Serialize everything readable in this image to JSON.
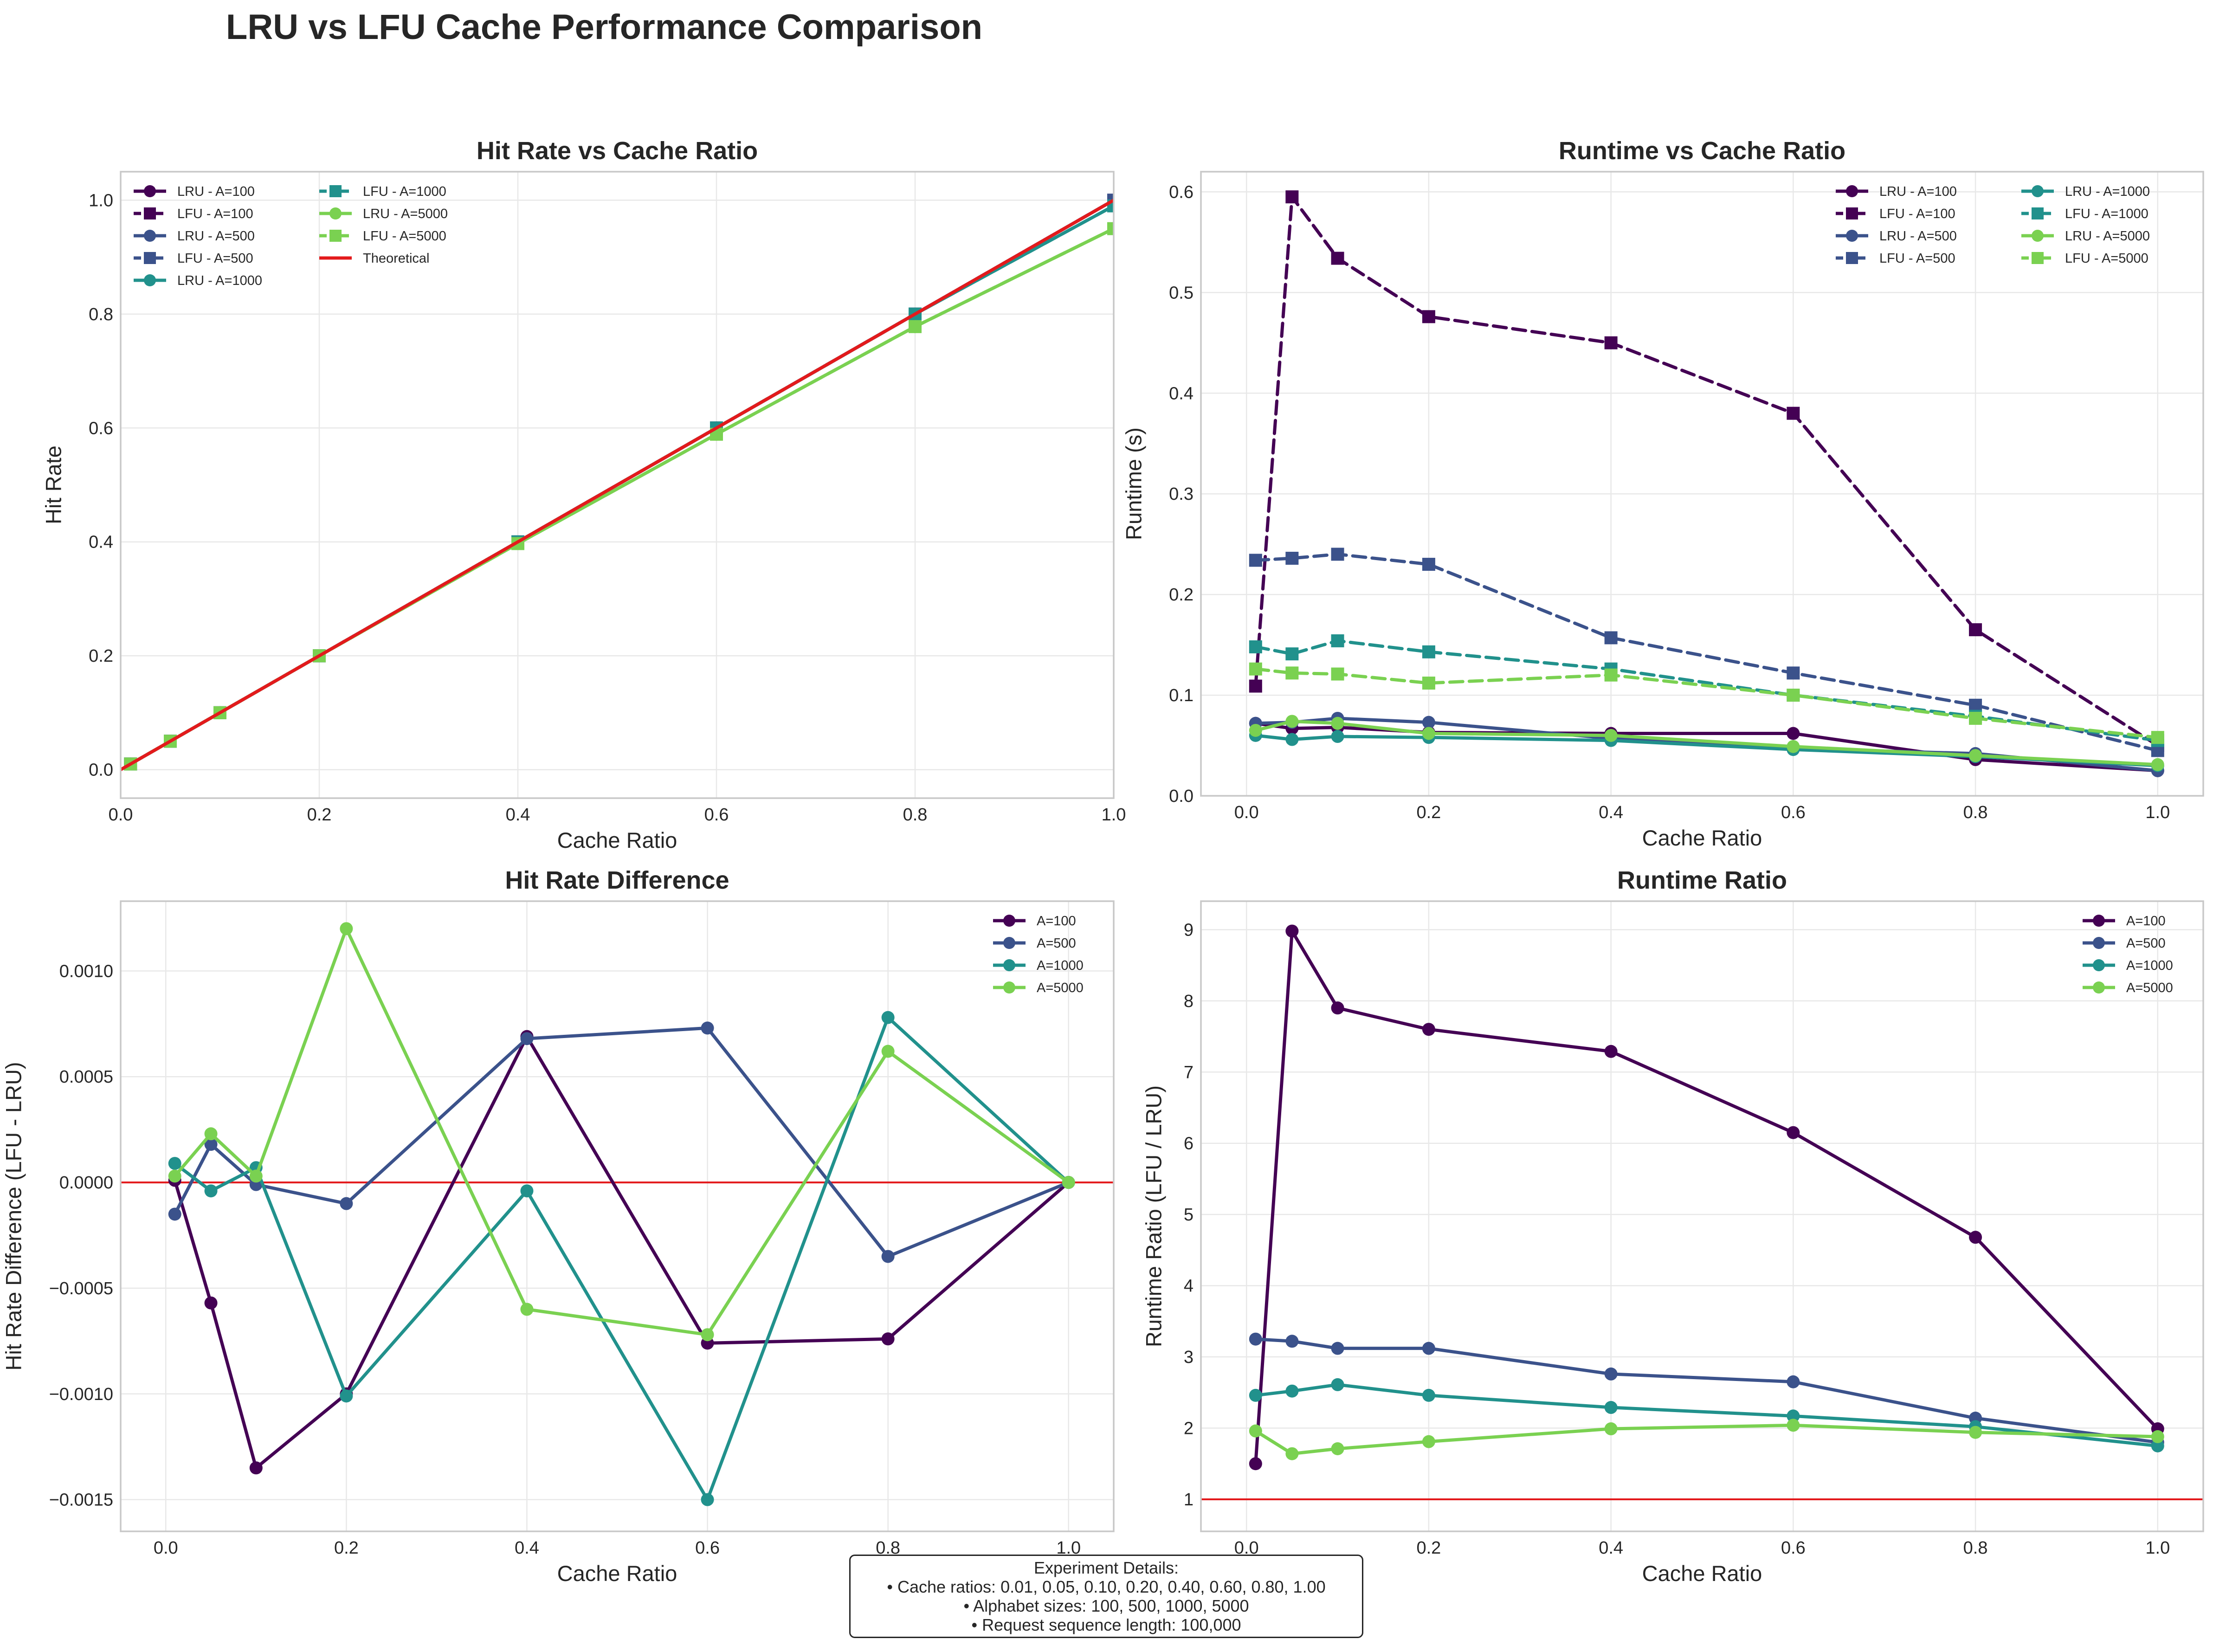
{
  "figure_title": "LRU vs LFU Cache Performance Comparison",
  "colors": {
    "A100": "#440154",
    "A500": "#3b528b",
    "A1000": "#21918c",
    "A5000": "#7ad151",
    "reference": "#e31a1c"
  },
  "chart_data": [
    {
      "id": "hit-rate",
      "type": "line",
      "title": "Hit Rate vs Cache Ratio",
      "xlabel": "Cache Ratio",
      "ylabel": "Hit Rate",
      "xlim": [
        0,
        1
      ],
      "ylim": [
        -0.05,
        1.05
      ],
      "xticks": [
        0,
        0.2,
        0.4,
        0.6,
        0.8,
        1
      ],
      "xtick_labels": [
        "0.0",
        "0.2",
        "0.4",
        "0.6",
        "0.8",
        "1.0"
      ],
      "yticks": [
        0,
        0.2,
        0.4,
        0.6,
        0.8,
        1
      ],
      "ytick_labels": [
        "0.0",
        "0.2",
        "0.4",
        "0.6",
        "0.8",
        "1.0"
      ],
      "grid": true,
      "legend": "top-left",
      "legend_columns": 2,
      "x": [
        0.01,
        0.05,
        0.1,
        0.2,
        0.4,
        0.6,
        0.8,
        1.0
      ],
      "series": [
        {
          "name": "LRU - A=100",
          "color": "#440154",
          "marker": "circle",
          "dash": "solid",
          "values": [
            0.01,
            0.05,
            0.1,
            0.2,
            0.4,
            0.6,
            0.8,
            1.0
          ]
        },
        {
          "name": "LFU - A=100",
          "color": "#440154",
          "marker": "square",
          "dash": "dashed",
          "values": [
            0.01,
            0.05,
            0.1,
            0.2,
            0.4,
            0.6,
            0.8,
            1.0
          ]
        },
        {
          "name": "LRU - A=500",
          "color": "#3b528b",
          "marker": "circle",
          "dash": "solid",
          "values": [
            0.01,
            0.05,
            0.1,
            0.2,
            0.4,
            0.6,
            0.8,
            1.0
          ]
        },
        {
          "name": "LFU - A=500",
          "color": "#3b528b",
          "marker": "square",
          "dash": "dashed",
          "values": [
            0.01,
            0.05,
            0.1,
            0.2,
            0.4,
            0.6,
            0.8,
            1.0
          ]
        },
        {
          "name": "LRU - A=1000",
          "color": "#21918c",
          "marker": "circle",
          "dash": "solid",
          "values": [
            0.01,
            0.05,
            0.1,
            0.2,
            0.4,
            0.6,
            0.8,
            0.99
          ]
        },
        {
          "name": "LFU - A=1000",
          "color": "#21918c",
          "marker": "square",
          "dash": "dashed",
          "values": [
            0.01,
            0.05,
            0.1,
            0.2,
            0.4,
            0.6,
            0.8,
            0.99
          ]
        },
        {
          "name": "LRU - A=5000",
          "color": "#7ad151",
          "marker": "circle",
          "dash": "solid",
          "values": [
            0.01,
            0.05,
            0.1,
            0.2,
            0.397,
            0.589,
            0.778,
            0.95
          ]
        },
        {
          "name": "LFU - A=5000",
          "color": "#7ad151",
          "marker": "square",
          "dash": "dashed",
          "values": [
            0.01,
            0.05,
            0.1,
            0.2,
            0.397,
            0.589,
            0.778,
            0.95
          ]
        },
        {
          "name": "Theoretical",
          "color": "#e31a1c",
          "marker": "none",
          "dash": "solid",
          "width": 7,
          "x": [
            0,
            1
          ],
          "values": [
            0,
            1
          ]
        }
      ]
    },
    {
      "id": "runtime",
      "type": "line",
      "title": "Runtime vs Cache Ratio",
      "xlabel": "Cache Ratio",
      "ylabel": "Runtime (s)",
      "xlim": [
        -0.05,
        1.05
      ],
      "ylim": [
        0,
        0.62
      ],
      "xticks": [
        0,
        0.2,
        0.4,
        0.6,
        0.8,
        1
      ],
      "xtick_labels": [
        "0.0",
        "0.2",
        "0.4",
        "0.6",
        "0.8",
        "1.0"
      ],
      "yticks": [
        0,
        0.1,
        0.2,
        0.3,
        0.4,
        0.5,
        0.6
      ],
      "ytick_labels": [
        "0.0",
        "0.1",
        "0.2",
        "0.3",
        "0.4",
        "0.5",
        "0.6"
      ],
      "grid": true,
      "legend": "top-right",
      "legend_columns": 2,
      "x": [
        0.01,
        0.05,
        0.1,
        0.2,
        0.4,
        0.6,
        0.8,
        1.0
      ],
      "series": [
        {
          "name": "LRU - A=100",
          "color": "#440154",
          "marker": "circle",
          "dash": "solid",
          "values": [
            0.072,
            0.067,
            0.068,
            0.063,
            0.062,
            0.062,
            0.036,
            0.025
          ]
        },
        {
          "name": "LFU - A=100",
          "color": "#440154",
          "marker": "square",
          "dash": "dashed",
          "values": [
            0.109,
            0.595,
            0.534,
            0.476,
            0.45,
            0.38,
            0.165,
            0.05
          ]
        },
        {
          "name": "LRU - A=500",
          "color": "#3b528b",
          "marker": "circle",
          "dash": "solid",
          "values": [
            0.072,
            0.073,
            0.077,
            0.073,
            0.057,
            0.047,
            0.042,
            0.025
          ]
        },
        {
          "name": "LFU - A=500",
          "color": "#3b528b",
          "marker": "square",
          "dash": "dashed",
          "values": [
            0.234,
            0.236,
            0.24,
            0.23,
            0.157,
            0.122,
            0.09,
            0.045
          ]
        },
        {
          "name": "LRU - A=1000",
          "color": "#21918c",
          "marker": "circle",
          "dash": "solid",
          "values": [
            0.06,
            0.056,
            0.059,
            0.058,
            0.055,
            0.046,
            0.039,
            0.03
          ]
        },
        {
          "name": "LFU - A=1000",
          "color": "#21918c",
          "marker": "square",
          "dash": "dashed",
          "values": [
            0.148,
            0.141,
            0.154,
            0.143,
            0.126,
            0.1,
            0.079,
            0.055
          ]
        },
        {
          "name": "LRU - A=5000",
          "color": "#7ad151",
          "marker": "circle",
          "dash": "solid",
          "values": [
            0.065,
            0.074,
            0.072,
            0.062,
            0.06,
            0.049,
            0.04,
            0.031
          ]
        },
        {
          "name": "LFU - A=5000",
          "color": "#7ad151",
          "marker": "square",
          "dash": "dashed",
          "values": [
            0.126,
            0.122,
            0.121,
            0.112,
            0.12,
            0.1,
            0.077,
            0.058
          ]
        }
      ]
    },
    {
      "id": "hit-rate-diff",
      "type": "line",
      "title": "Hit Rate Difference",
      "xlabel": "Cache Ratio",
      "ylabel": "Hit Rate Difference (LFU - LRU)",
      "xlim": [
        -0.05,
        1.05
      ],
      "ylim": [
        -0.00165,
        0.00133
      ],
      "xticks": [
        0,
        0.2,
        0.4,
        0.6,
        0.8,
        1
      ],
      "xtick_labels": [
        "0.0",
        "0.2",
        "0.4",
        "0.6",
        "0.8",
        "1.0"
      ],
      "yticks": [
        -0.0015,
        -0.001,
        -0.0005,
        0,
        0.0005,
        0.001
      ],
      "ytick_labels": [
        "−0.0015",
        "−0.0010",
        "−0.0005",
        "0.0000",
        "0.0005",
        "0.0010"
      ],
      "grid": true,
      "legend": "top-right",
      "legend_columns": 1,
      "reference_line": {
        "y": 0,
        "color": "#e31a1c"
      },
      "x": [
        0.01,
        0.05,
        0.1,
        0.2,
        0.4,
        0.6,
        0.8,
        1.0
      ],
      "series": [
        {
          "name": "A=100",
          "color": "#440154",
          "marker": "circle",
          "dash": "solid",
          "values": [
            1e-05,
            -0.00057,
            -0.00135,
            -0.001,
            0.00069,
            -0.00076,
            -0.00074,
            0
          ]
        },
        {
          "name": "A=500",
          "color": "#3b528b",
          "marker": "circle",
          "dash": "solid",
          "values": [
            -0.00015,
            0.00018,
            -1e-05,
            -0.0001,
            0.00068,
            0.00073,
            -0.00035,
            0
          ]
        },
        {
          "name": "A=1000",
          "color": "#21918c",
          "marker": "circle",
          "dash": "solid",
          "values": [
            9e-05,
            -4e-05,
            7e-05,
            -0.00101,
            -4e-05,
            -0.0015,
            0.00078,
            0
          ]
        },
        {
          "name": "A=5000",
          "color": "#7ad151",
          "marker": "circle",
          "dash": "solid",
          "values": [
            3e-05,
            0.00023,
            3e-05,
            0.0012,
            -0.0006,
            -0.00072,
            0.00062,
            0
          ]
        }
      ]
    },
    {
      "id": "runtime-ratio",
      "type": "line",
      "title": "Runtime Ratio",
      "xlabel": "Cache Ratio",
      "ylabel": "Runtime Ratio (LFU / LRU)",
      "xlim": [
        -0.05,
        1.05
      ],
      "ylim": [
        0.55,
        9.4
      ],
      "xticks": [
        0,
        0.2,
        0.4,
        0.6,
        0.8,
        1
      ],
      "xtick_labels": [
        "0.0",
        "0.2",
        "0.4",
        "0.6",
        "0.8",
        "1.0"
      ],
      "yticks": [
        1,
        2,
        3,
        4,
        5,
        6,
        7,
        8,
        9
      ],
      "ytick_labels": [
        "1",
        "2",
        "3",
        "4",
        "5",
        "6",
        "7",
        "8",
        "9"
      ],
      "grid": true,
      "legend": "top-right",
      "legend_columns": 1,
      "reference_line": {
        "y": 1,
        "color": "#e31a1c"
      },
      "x": [
        0.01,
        0.05,
        0.1,
        0.2,
        0.4,
        0.6,
        0.8,
        1.0
      ],
      "series": [
        {
          "name": "A=100",
          "color": "#440154",
          "marker": "circle",
          "dash": "solid",
          "values": [
            1.5,
            8.98,
            7.9,
            7.6,
            7.29,
            6.15,
            4.68,
            1.99
          ]
        },
        {
          "name": "A=500",
          "color": "#3b528b",
          "marker": "circle",
          "dash": "solid",
          "values": [
            3.25,
            3.22,
            3.12,
            3.12,
            2.76,
            2.65,
            2.14,
            1.8
          ]
        },
        {
          "name": "A=1000",
          "color": "#21918c",
          "marker": "circle",
          "dash": "solid",
          "values": [
            2.46,
            2.52,
            2.61,
            2.46,
            2.29,
            2.17,
            2.02,
            1.75
          ]
        },
        {
          "name": "A=5000",
          "color": "#7ad151",
          "marker": "circle",
          "dash": "solid",
          "values": [
            1.96,
            1.64,
            1.71,
            1.81,
            1.99,
            2.04,
            1.94,
            1.88
          ]
        }
      ]
    }
  ],
  "details": {
    "heading": "Experiment Details:",
    "lines": [
      "• Cache ratios: 0.01, 0.05, 0.10, 0.20, 0.40, 0.60, 0.80, 1.00",
      "• Alphabet sizes: 100, 500, 1000, 5000",
      "• Request sequence length: 100,000"
    ]
  }
}
